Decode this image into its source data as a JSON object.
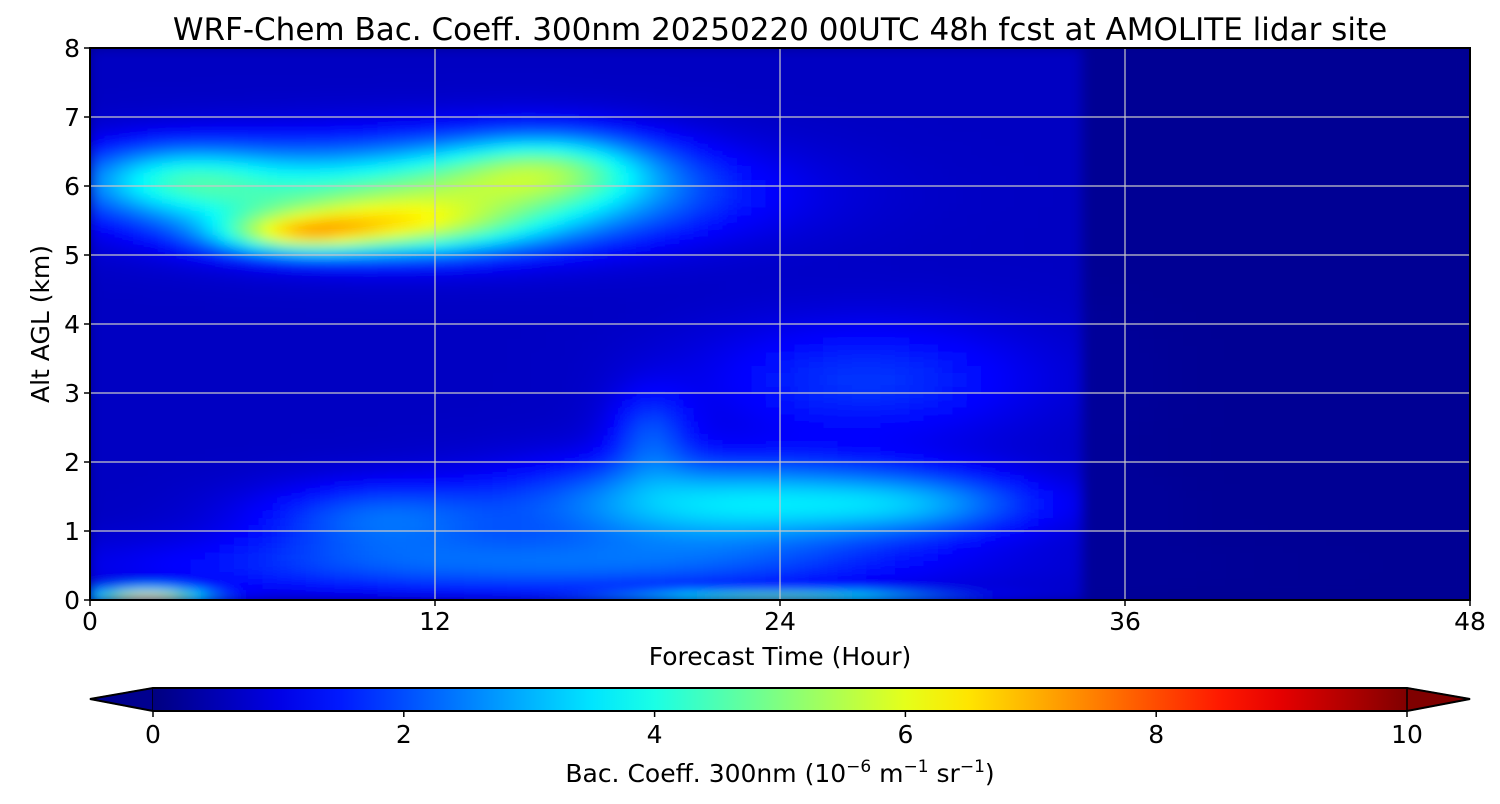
{
  "chart_data": {
    "type": "heatmap",
    "title": "WRF-Chem Bac. Coeff. 300nm  20250220 00UTC 48h fcst at AMOLITE lidar site",
    "xlabel": "Forecast Time (Hour)",
    "ylabel": "Alt AGL (km)",
    "xlim": [
      0,
      48
    ],
    "ylim": [
      0,
      8
    ],
    "x_ticks": [
      "0",
      "12",
      "24",
      "36",
      "48"
    ],
    "y_ticks": [
      "0",
      "1",
      "2",
      "3",
      "4",
      "5",
      "6",
      "7",
      "8"
    ],
    "grid": true,
    "colormap": "jet",
    "colorbar": {
      "label_prefix": "Bac. Coeff. 300nm  (10",
      "label_exp1": "−6",
      "label_mid1": " m",
      "label_exp2": "−1",
      "label_mid2": " sr",
      "label_exp3": "−1",
      "label_suffix": ")",
      "range": [
        0,
        10
      ],
      "ticks": [
        "0",
        "2",
        "4",
        "6",
        "8",
        "10"
      ],
      "extend": "both",
      "placement": "bottom"
    },
    "features": [
      {
        "t": 12,
        "z": 5.9,
        "st": 6.0,
        "sz": 0.5,
        "v": 4.0
      },
      {
        "t": 3,
        "z": 6.1,
        "st": 2.5,
        "sz": 0.35,
        "v": 2.5
      },
      {
        "t": 16,
        "z": 6.3,
        "st": 2.5,
        "sz": 0.35,
        "v": 2.3
      },
      {
        "t": 10,
        "z": 5.4,
        "st": 3.5,
        "sz": 0.28,
        "v": 3.2
      },
      {
        "t": 7,
        "z": 5.3,
        "st": 1.8,
        "sz": 0.18,
        "v": 2.6
      },
      {
        "t": 22,
        "z": 1.4,
        "st": 5.0,
        "sz": 0.45,
        "v": 2.8
      },
      {
        "t": 10,
        "z": 1.2,
        "st": 3.0,
        "sz": 0.35,
        "v": 1.5
      },
      {
        "t": 29,
        "z": 1.4,
        "st": 3.0,
        "sz": 0.3,
        "v": 1.4
      },
      {
        "t": 19.5,
        "z": 2.4,
        "st": 1.0,
        "sz": 0.45,
        "v": 1.2
      },
      {
        "t": 27,
        "z": 3.2,
        "st": 4.0,
        "sz": 0.6,
        "v": 1.1
      },
      {
        "t": 15,
        "z": 0.5,
        "st": 9.0,
        "sz": 0.3,
        "v": 1.5
      },
      {
        "t": 24,
        "z": 0.03,
        "st": 4.0,
        "sz": 0.05,
        "v": 4.0
      },
      {
        "t": 2,
        "z": 0.07,
        "st": 1.5,
        "sz": 0.06,
        "v": 6.0
      }
    ]
  }
}
